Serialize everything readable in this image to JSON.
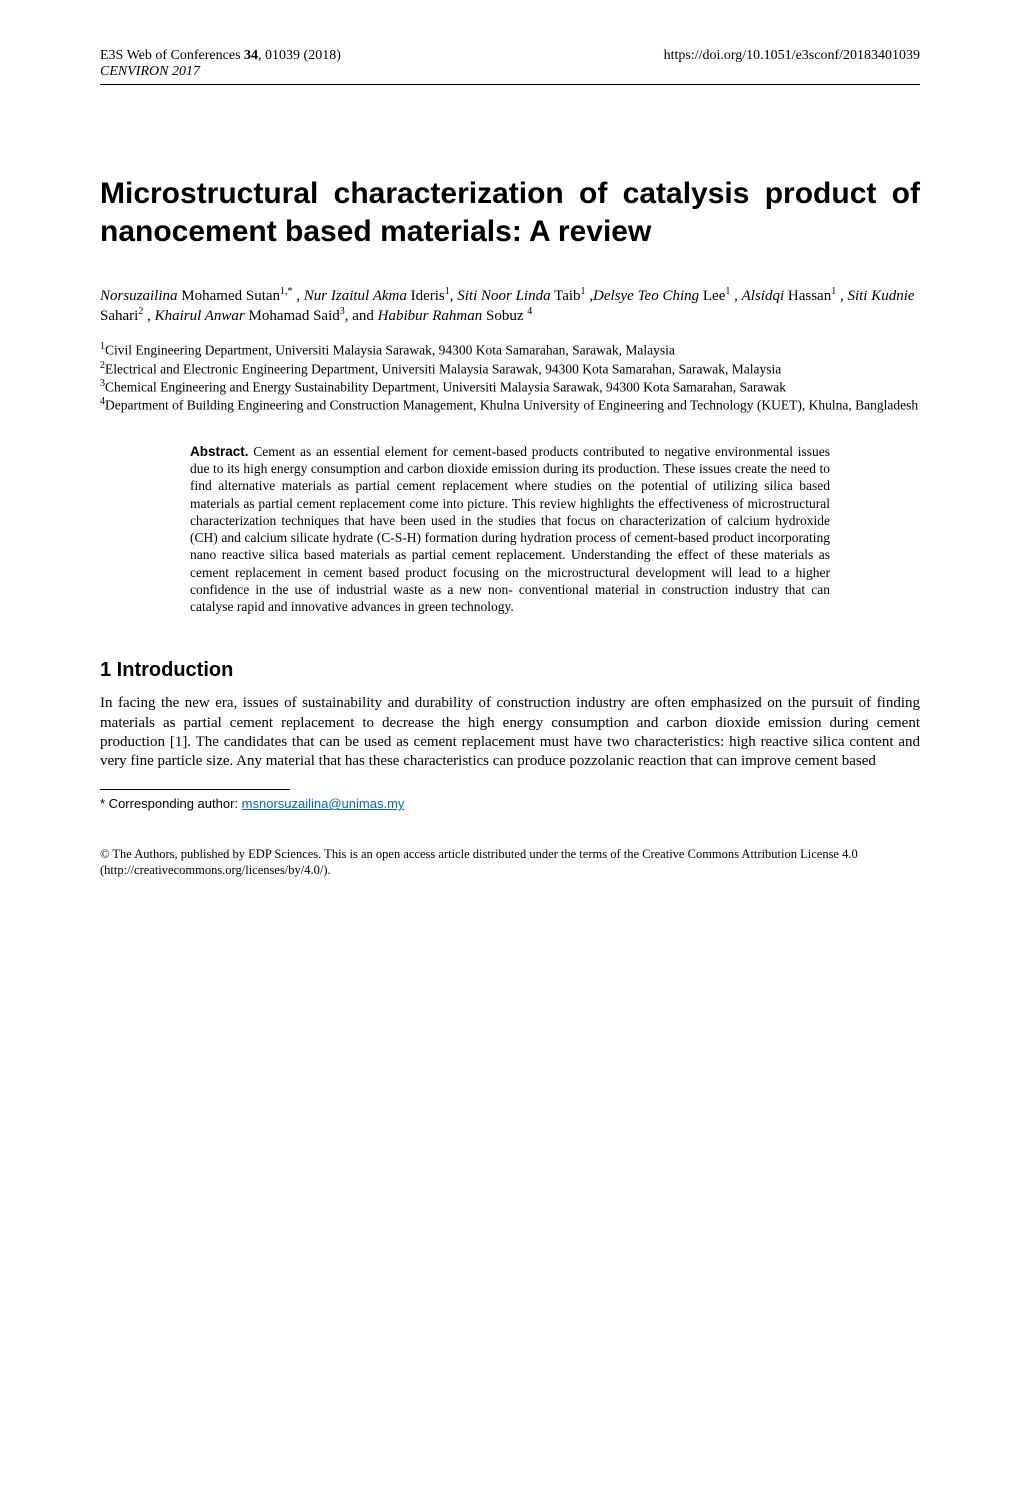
{
  "header": {
    "conf_line": "E3S Web of Conferences",
    "volume_bold": "34",
    "article_num": ", 01039 (2018)",
    "journal": "CENVIRON 2017",
    "doi": "https://doi.org/10.1051/e3sconf/20183401039"
  },
  "title": "Microstructural characterization of catalysis product of nanocement based materials: A review",
  "authors": {
    "a1_first": "Norsuzailina",
    "a1_last": " Mohamed Sutan",
    "a1_sup": "1,*",
    "sep1": " , ",
    "a2_first": "Nur Izaitul Akma",
    "a2_last": " Ideris",
    "a2_sup": "1",
    "sep2": ", ",
    "a3_first": "Siti Noor Linda",
    "a3_last": " Taib",
    "a3_sup": "1",
    "sep3": " ,",
    "a4_first": "Delsye Teo Ching",
    "a4_last": " Lee",
    "a4_sup": "1",
    "sep4": " , ",
    "a5_first": "Alsidqi",
    "a5_last": " Hassan",
    "a5_sup": "1",
    "sep5": " , ",
    "a6_first": "Siti Kudnie",
    "a6_last": " Sahari",
    "a6_sup": "2",
    "sep6": " , ",
    "a7_first": "Khairul Anwar",
    "a7_last": " Mohamad Said",
    "a7_sup": "3",
    "sep7": ", and ",
    "a8_first": "Habibur Rahman",
    "a8_last": " Sobuz ",
    "a8_sup": "4"
  },
  "affiliations": {
    "aff1_sup": "1",
    "aff1": "Civil Engineering Department, Universiti Malaysia Sarawak, 94300 Kota Samarahan, Sarawak, Malaysia",
    "aff2_sup": "2",
    "aff2": "Electrical and Electronic Engineering Department, Universiti Malaysia Sarawak, 94300 Kota Samarahan, Sarawak, Malaysia",
    "aff3_sup": "3",
    "aff3": "Chemical Engineering and Energy Sustainability Department, Universiti Malaysia Sarawak, 94300 Kota Samarahan, Sarawak",
    "aff4_sup": "4",
    "aff4": "Department of Building Engineering and Construction Management, Khulna University of Engineering and Technology (KUET), Khulna, Bangladesh"
  },
  "abstract": {
    "label": "Abstract.",
    "text": " Cement as an essential element for cement-based products contributed to negative environmental issues due to its high energy consumption and carbon dioxide emission during its production. These issues create the need to find alternative materials as partial cement replacement where studies on the potential of utilizing silica based materials as partial cement replacement come into picture. This review highlights the effectiveness of microstructural characterization techniques that have been used in the studies that focus on characterization of calcium hydroxide (CH) and calcium silicate hydrate (C-S-H) formation during hydration process of cement-based product incorporating nano reactive silica based materials as partial cement replacement. Understanding the effect of these materials as cement replacement in cement based product focusing on the microstructural development will lead to a higher confidence in the use of industrial waste as a new non- conventional material in construction industry that can catalyse rapid and innovative advances in green technology."
  },
  "section1": {
    "heading": "1 Introduction",
    "para": "In facing the new era, issues of sustainability and durability of construction industry are often emphasized on the pursuit of finding materials as partial cement replacement to decrease the high energy consumption and carbon dioxide emission during cement production [1]. The candidates that can be used as cement replacement must have two characteristics: high reactive silica content and very fine particle size. Any material that has these characteristics can produce pozzolanic reaction that can improve cement based"
  },
  "footnote": {
    "marker": "*",
    "label": " Corresponding author: ",
    "email": "msnorsuzailina@unimas.my"
  },
  "copyright": "© The Authors, published by EDP Sciences. This is an open access article distributed under the terms of the Creative Commons Attribution License 4.0 (http://creativecommons.org/licenses/by/4.0/).",
  "colors": {
    "text": "#000000",
    "link": "#0066cc",
    "background": "#ffffff"
  },
  "fonts": {
    "serif": "Times New Roman",
    "sans": "Arial"
  }
}
